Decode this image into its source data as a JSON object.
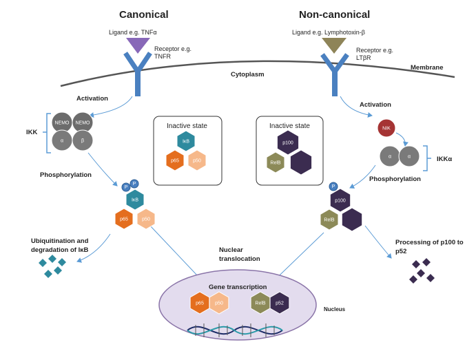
{
  "titles": {
    "canonical": "Canonical",
    "non_canonical": "Non-canonical"
  },
  "labels": {
    "ligand_left": "Ligand e.g. TNFα",
    "ligand_right": "Ligand e.g.  Lymphotoxin-β",
    "receptor_left": "Receptor e.g. TNFR",
    "receptor_right": "Receptor e.g. LTβR",
    "cytoplasm": "Cytoplasm",
    "membrane": "Membrane",
    "activation_left": "Activation",
    "activation_right": "Activation",
    "ikk": "IKK",
    "ikk_alpha": "IKKα",
    "phosphorylation_left": "Phosphorylation",
    "phosphorylation_right": "Phosphorylation",
    "ubiquitination": "Ubiquitination and degradation of IκB",
    "nuclear_translocation": "Nuclear translocation",
    "processing": "Processing of p100 to p52",
    "gene_transcription": "Gene transcription",
    "nucleus": "Nucleus",
    "inactive_left": "Inactive state",
    "inactive_right": "Inactive state"
  },
  "molecules": {
    "nemo": "NEMO",
    "alpha": "α",
    "beta": "β",
    "nik": "NIK",
    "ikb": "IκB",
    "p65": "p65",
    "p50": "p50",
    "p100": "p100",
    "relb": "RelB",
    "p52": "p52",
    "phospho": "P"
  },
  "colors": {
    "receptor": "#4a80c0",
    "ligand_left": "#8868b8",
    "ligand_right": "#8e8458",
    "teal": "#2e8a9e",
    "orange": "#e46e1e",
    "peach": "#f6b88a",
    "olive": "#8c8a58",
    "purple": "#3b2c50",
    "grey": "#7a7a7a",
    "nik": "#a53434",
    "arrow": "#5b9bd5",
    "nucleus_fill": "#e3dcee",
    "nucleus_stroke": "#8a74a8"
  }
}
